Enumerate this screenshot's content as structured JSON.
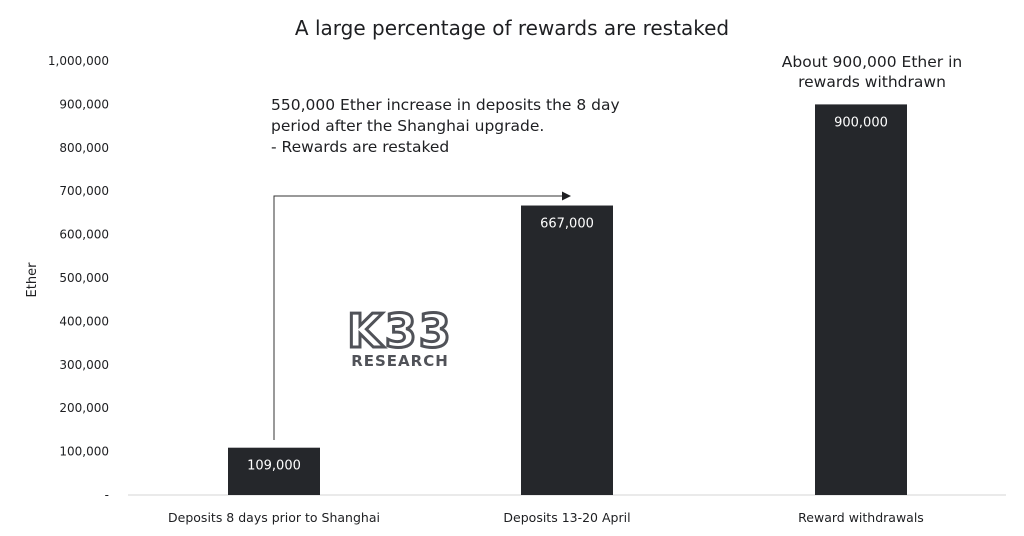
{
  "chart_data": {
    "type": "bar",
    "title": "A large percentage of rewards are restaked",
    "ylabel": "Ether",
    "xlabel": "",
    "categories": [
      "Deposits 8 days prior to Shanghai",
      "Deposits 13-20 April",
      "Reward withdrawals"
    ],
    "values": [
      109000,
      667000,
      900000
    ],
    "value_labels": [
      "109,000",
      "667,000",
      "900,000"
    ],
    "ylim": [
      0,
      1000000
    ],
    "yticks": [
      0,
      100000,
      200000,
      300000,
      400000,
      500000,
      600000,
      700000,
      800000,
      900000,
      1000000
    ],
    "ytick_labels": [
      "-",
      "100,000",
      "200,000",
      "300,000",
      "400,000",
      "500,000",
      "600,000",
      "700,000",
      "800,000",
      "900,000",
      "1,000,000"
    ],
    "grid": false,
    "bar_color": "#25272b",
    "annotations": {
      "increase": [
        "550,000 Ether increase in deposits the 8 day",
        "period after the Shanghai upgrade.",
        "- Rewards are restaked"
      ],
      "withdrawn": [
        "About 900,000 Ether in",
        "rewards withdrawn"
      ]
    }
  },
  "watermark": {
    "logo": "K33",
    "sub": "RESEARCH"
  }
}
